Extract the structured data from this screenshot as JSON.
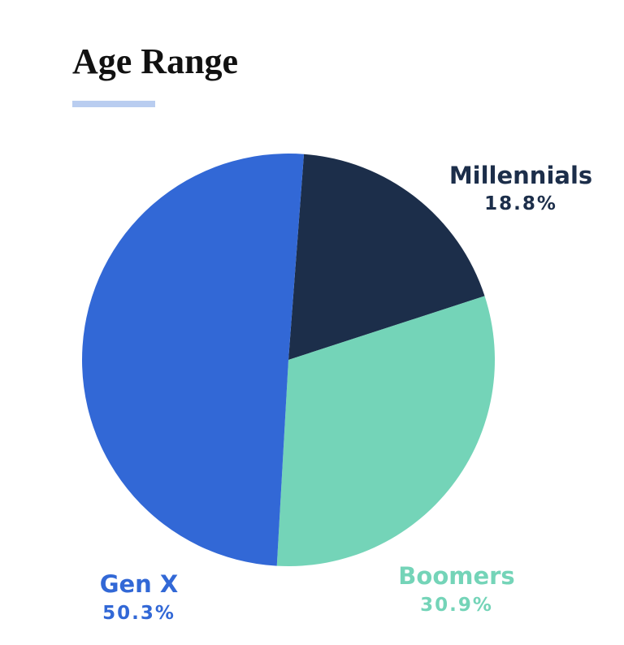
{
  "chart_data": {
    "type": "pie",
    "title": "Age Range",
    "categories": [
      "Millennials",
      "Boomers",
      "Gen X"
    ],
    "values": [
      18.8,
      30.9,
      50.3
    ],
    "value_labels": [
      "18.8%",
      "30.9%",
      "50.3%"
    ],
    "colors": [
      "#1c2e4a",
      "#74d4b8",
      "#3268d6"
    ]
  }
}
